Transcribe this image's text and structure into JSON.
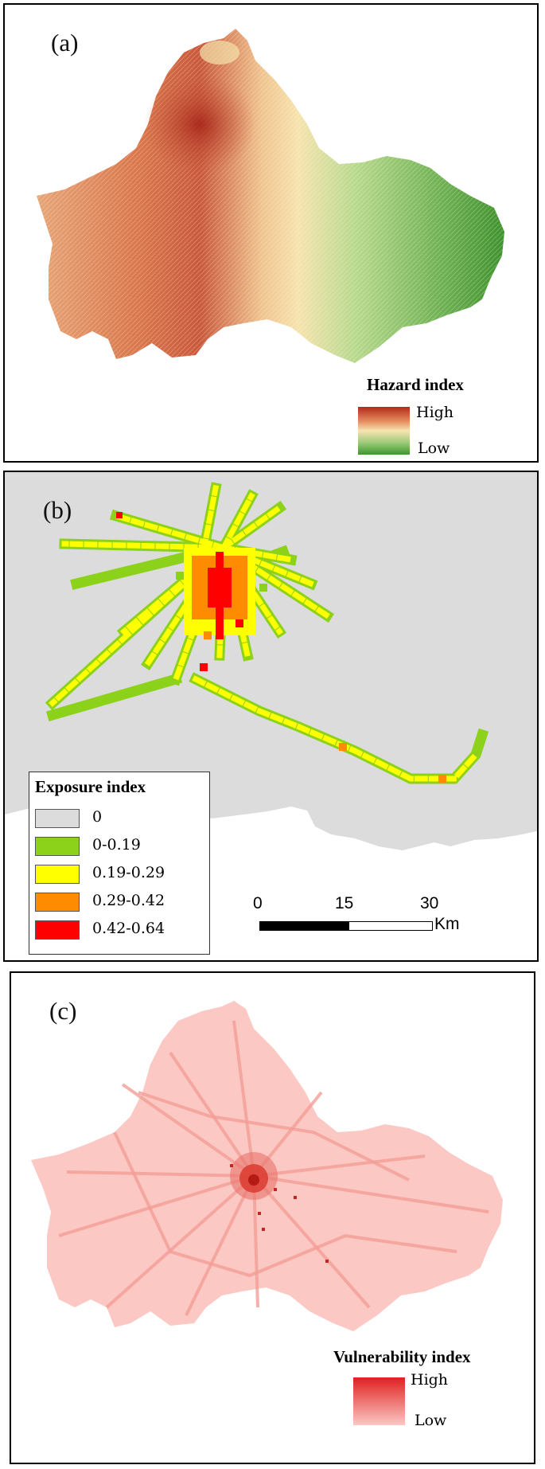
{
  "panel_a": {
    "label": "(a)",
    "legend_title": "Hazard index",
    "legend_high": "High",
    "legend_low": "Low",
    "ramp_colors": [
      "#b22a18",
      "#e58c5e",
      "#f7e4b0",
      "#9ccb78",
      "#3e962e"
    ]
  },
  "panel_b": {
    "label": "(b)",
    "legend_title": "Exposure index",
    "classes": [
      {
        "label": "0",
        "color": "#dcdcdc"
      },
      {
        "label": "0-0.19",
        "color": "#8cd11a"
      },
      {
        "label": "0.19-0.29",
        "color": "#ffff00"
      },
      {
        "label": "0.29-0.42",
        "color": "#ff8c00"
      },
      {
        "label": "0.42-0.64",
        "color": "#ff0000"
      }
    ],
    "scale_ticks": [
      "0",
      "15",
      "30"
    ],
    "scale_unit": "Km"
  },
  "panel_c": {
    "label": "(c)",
    "legend_title": "Vulnerability index",
    "legend_high": "High",
    "legend_low": "Low",
    "ramp_colors": [
      "#e02020",
      "#fbc8c4"
    ]
  }
}
